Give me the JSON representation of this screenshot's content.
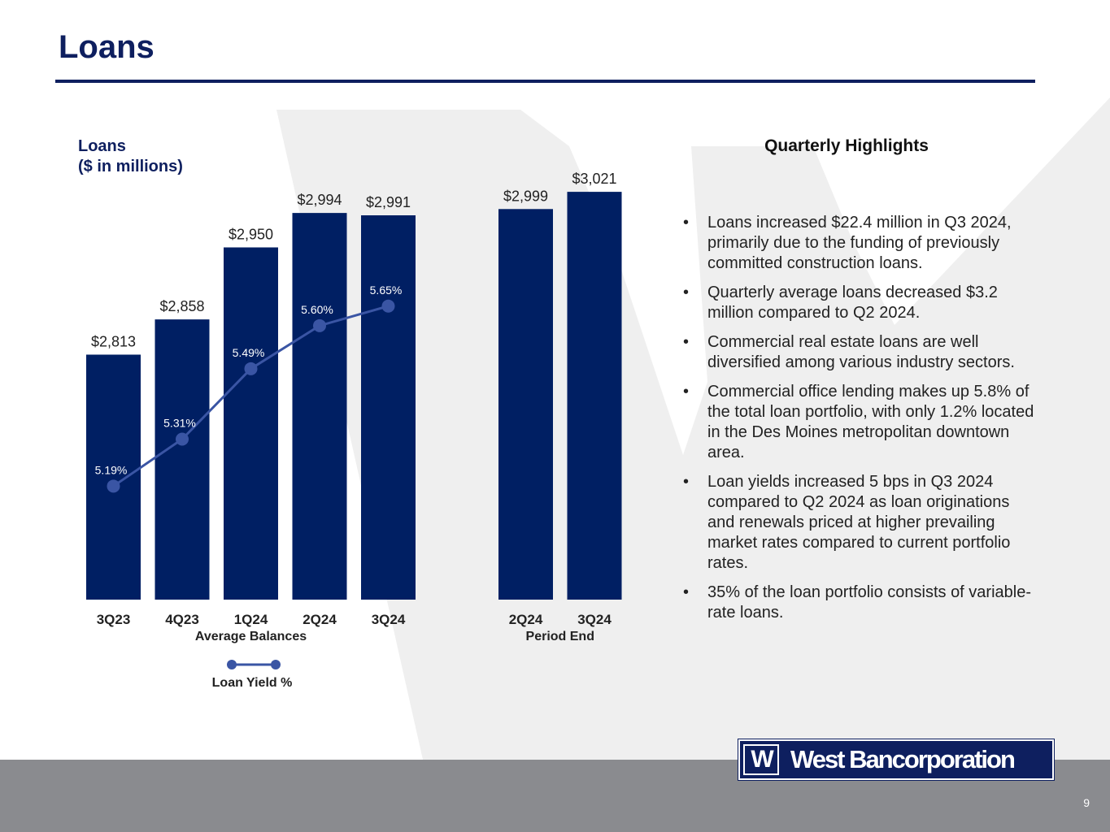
{
  "page": {
    "title": "Loans",
    "page_number": "9"
  },
  "chart_section": {
    "title_line1": "Loans",
    "title_line2": "($ in millions)"
  },
  "chart_data": {
    "type": "bar",
    "title": "Loans ($ in millions)",
    "groups": [
      {
        "name": "Average Balances",
        "categories": [
          "3Q23",
          "4Q23",
          "1Q24",
          "2Q24",
          "3Q24"
        ],
        "values": [
          2813,
          2858,
          2950,
          2994,
          2991
        ],
        "labels": [
          "$2,813",
          "$2,858",
          "$2,950",
          "$2,994",
          "$2,991"
        ]
      },
      {
        "name": "Period End",
        "categories": [
          "2Q24",
          "3Q24"
        ],
        "values": [
          2999,
          3021
        ],
        "labels": [
          "$2,999",
          "$3,021"
        ]
      }
    ],
    "line_series": {
      "name": "Loan Yield %",
      "group": "Average Balances",
      "values": [
        5.19,
        5.31,
        5.49,
        5.6,
        5.65
      ],
      "labels": [
        "5.19%",
        "5.31%",
        "5.49%",
        "5.60%",
        "5.65%"
      ]
    },
    "bar_value_range": [
      2500,
      3100
    ],
    "yield_range": [
      4.9,
      6.1
    ],
    "legend": {
      "label": "Loan Yield %",
      "position": "bottom"
    },
    "colors": {
      "bar": "#001f63",
      "line": "#3a55a4"
    },
    "grid": false
  },
  "highlights": {
    "title": "Quarterly Highlights",
    "items": [
      "Loans increased $22.4 million in Q3 2024, primarily due to the funding of previously committed construction loans.",
      "Quarterly average loans decreased $3.2 million compared to Q2 2024.",
      "Commercial real estate loans are well diversified among various industry sectors.",
      "Commercial office lending makes up 5.8% of the total loan portfolio, with only 1.2% located in the Des Moines metropolitan downtown area.",
      "Loan yields increased 5 bps in Q3 2024 compared to Q2 2024 as loan originations and renewals priced at higher prevailing market rates compared to current portfolio rates.",
      "35% of the loan portfolio consists of variable-rate loans."
    ]
  },
  "logo": {
    "mark": "W",
    "name": "West Bancorporation"
  },
  "colors": {
    "brand": "#0e1f5f",
    "footer": "#8a8b8f",
    "watermark": "#ededed"
  }
}
